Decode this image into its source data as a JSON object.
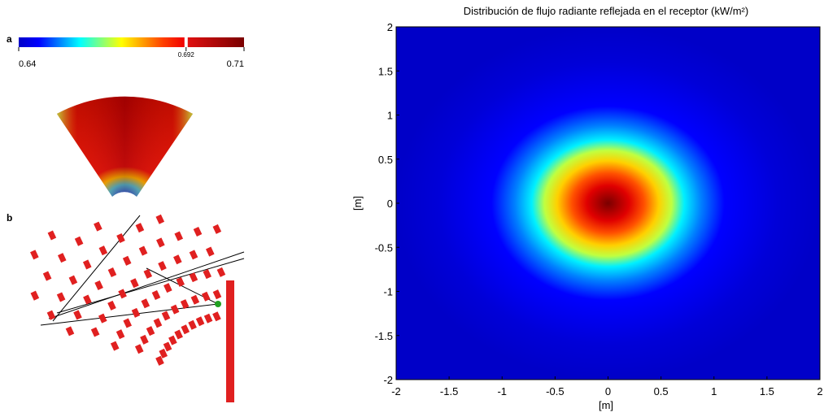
{
  "panels": {
    "a": {
      "label": "a",
      "colorbar": {
        "lim": [
          0.64,
          0.71
        ],
        "ticks": [
          0.64,
          0.692,
          0.71
        ]
      }
    },
    "b": {
      "label": "b"
    }
  },
  "chart_data": {
    "type": "heatmap",
    "title": "Distribución de flujo radiante reflejada en el receptor (kW/m²)",
    "xlabel": "[m]",
    "ylabel": "[m]",
    "xlim": [
      -2,
      2
    ],
    "ylim": [
      -2,
      2
    ],
    "xticks": [
      -2,
      -1.5,
      -1,
      -0.5,
      0,
      0.5,
      1,
      1.5,
      2
    ],
    "yticks": [
      -2,
      -1.5,
      -1,
      -0.5,
      0,
      0.5,
      1,
      1.5,
      2
    ]
  }
}
